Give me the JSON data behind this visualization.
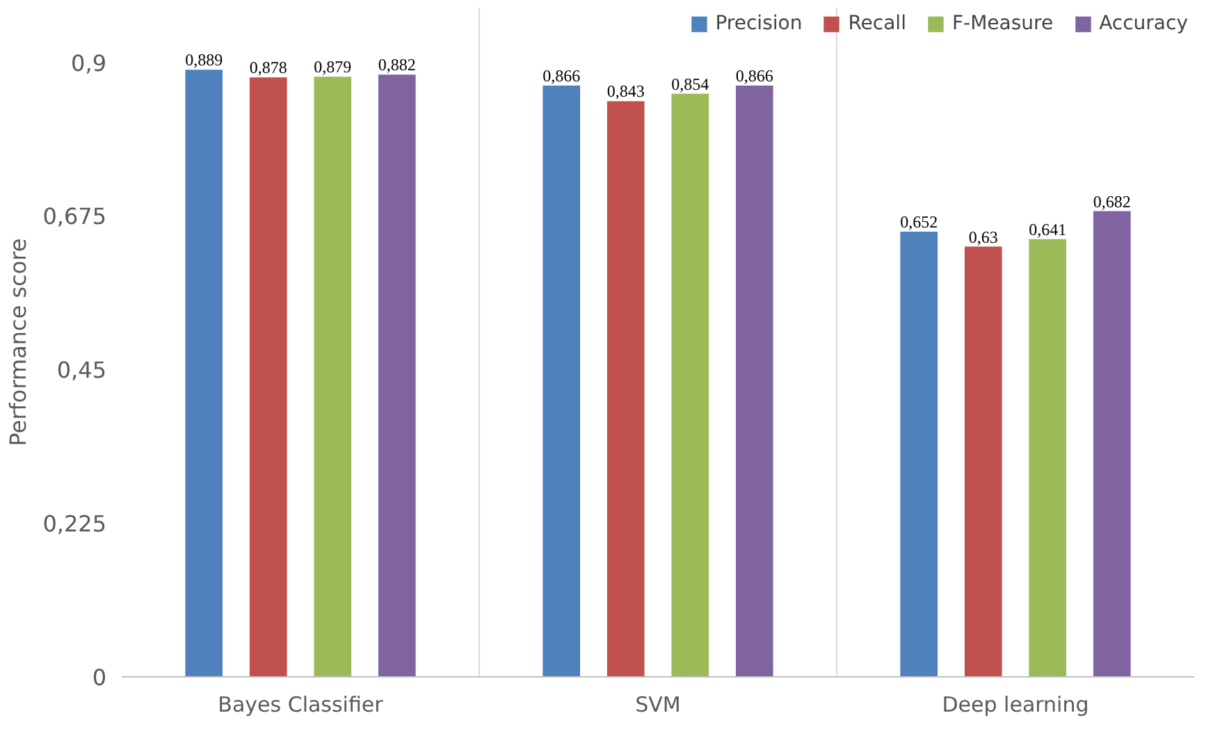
{
  "chart_data": {
    "type": "bar",
    "ylabel": "Performance score",
    "categories": [
      "Bayes Classifier",
      "SVM",
      "Deep learning"
    ],
    "series": [
      {
        "name": "Precision",
        "color": "#4f81bd",
        "values": [
          0.889,
          0.866,
          0.652
        ],
        "value_labels": [
          "0,889",
          "0,866",
          "0,652"
        ]
      },
      {
        "name": "Recall",
        "color": "#c0504d",
        "values": [
          0.878,
          0.843,
          0.63
        ],
        "value_labels": [
          "0,878",
          "0,843",
          "0,63"
        ]
      },
      {
        "name": "F-Measure",
        "color": "#9bbb59",
        "values": [
          0.879,
          0.854,
          0.641
        ],
        "value_labels": [
          "0,879",
          "0,854",
          "0,641"
        ]
      },
      {
        "name": "Accuracy",
        "color": "#8064a2",
        "values": [
          0.882,
          0.866,
          0.682
        ],
        "value_labels": [
          "0,882",
          "0,866",
          "0,682"
        ]
      }
    ],
    "ylim": [
      0,
      0.98
    ],
    "yticks": [
      0,
      {
        "value": 0.225,
        "label": "0,225"
      },
      {
        "value": 0.45,
        "label": "0,45"
      },
      {
        "value": 0.675,
        "label": "0,675"
      },
      {
        "value": 0.9,
        "label": "0,9"
      }
    ],
    "grid": "x",
    "legend": "top right"
  }
}
